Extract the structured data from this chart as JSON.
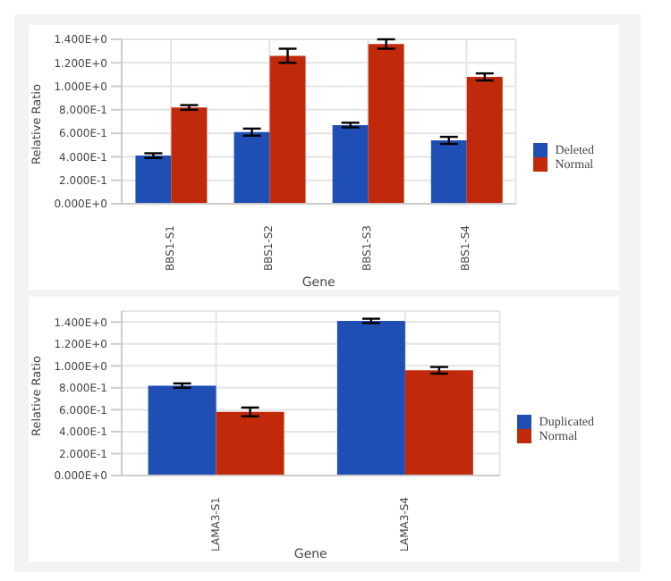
{
  "chart_data": [
    {
      "type": "bar",
      "categories": [
        "BBS1-S1",
        "BBS1-S2",
        "BBS1-S3",
        "BBS1-S4"
      ],
      "xlabel": "Gene",
      "ylabel": "Relative Ratio",
      "series": [
        {
          "name": "Deleted",
          "color": "#1f4fb5",
          "values": [
            0.41,
            0.61,
            0.67,
            0.54
          ],
          "errors": [
            0.02,
            0.03,
            0.02,
            0.03
          ]
        },
        {
          "name": "Normal",
          "color": "#c02a0a",
          "values": [
            0.82,
            1.26,
            1.36,
            1.08
          ],
          "errors": [
            0.02,
            0.06,
            0.04,
            0.03
          ]
        }
      ],
      "ylim": [
        0,
        1.4
      ],
      "yticks": [
        {
          "value": 0,
          "label": "0.000E+0"
        },
        {
          "value": 0.2,
          "label": "2.000E-1"
        },
        {
          "value": 0.4,
          "label": "4.000E-1"
        },
        {
          "value": 0.6,
          "label": "6.000E-1"
        },
        {
          "value": 0.8,
          "label": "8.000E-1"
        },
        {
          "value": 1.0,
          "label": "1.000E+0"
        },
        {
          "value": 1.2,
          "label": "1.200E+0"
        },
        {
          "value": 1.4,
          "label": "1.400E+0"
        }
      ],
      "grid": true,
      "legend": "right"
    },
    {
      "type": "bar",
      "categories": [
        "LAMA3-S1",
        "LAMA3-S4"
      ],
      "xlabel": "Gene",
      "ylabel": "Relative Ratio",
      "series": [
        {
          "name": "Duplicated",
          "color": "#1f4fb5",
          "values": [
            0.82,
            1.41
          ],
          "errors": [
            0.02,
            0.02
          ]
        },
        {
          "name": "Normal",
          "color": "#c02a0a",
          "values": [
            0.58,
            0.96
          ],
          "errors": [
            0.04,
            0.03
          ]
        }
      ],
      "ylim": [
        0,
        1.5
      ],
      "yticks": [
        {
          "value": 0,
          "label": "0.000E+0"
        },
        {
          "value": 0.2,
          "label": "2.000E-1"
        },
        {
          "value": 0.4,
          "label": "4.000E-1"
        },
        {
          "value": 0.6,
          "label": "6.000E-1"
        },
        {
          "value": 0.8,
          "label": "8.000E-1"
        },
        {
          "value": 1.0,
          "label": "1.000E+0"
        },
        {
          "value": 1.2,
          "label": "1.200E+0"
        },
        {
          "value": 1.4,
          "label": "1.400E+0"
        }
      ],
      "grid": true,
      "legend": "right"
    }
  ]
}
